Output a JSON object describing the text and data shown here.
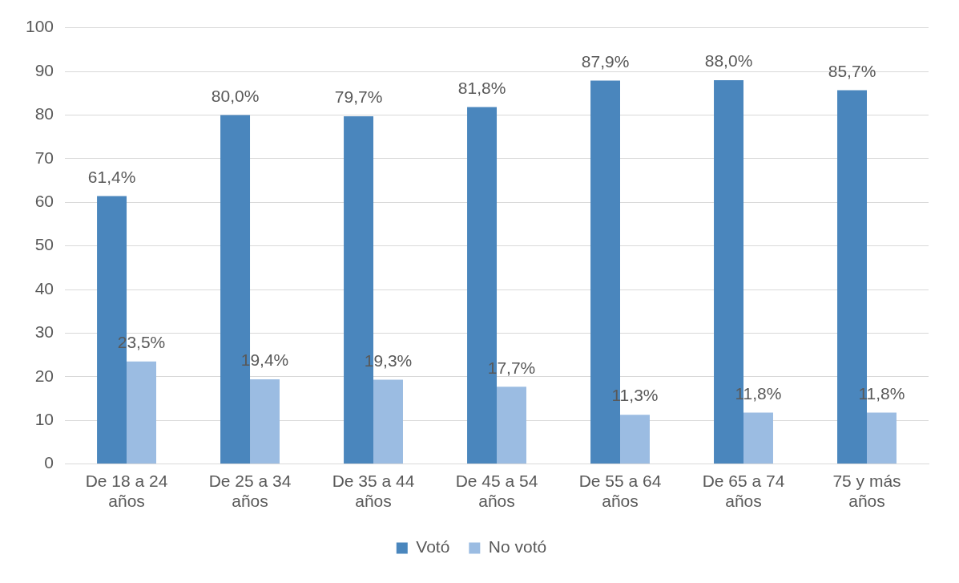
{
  "chart_data": {
    "type": "bar",
    "categories": [
      "De 18 a 24 años",
      "De 25 a 34 años",
      "De 35 a 44 años",
      "De 45 a 54 años",
      "De 55 a 64 años",
      "De 65 a 74 años",
      "75 y más años"
    ],
    "series": [
      {
        "name": "Votó",
        "color": "#4a86bd",
        "values": [
          61.4,
          80.0,
          79.7,
          81.8,
          87.9,
          88.0,
          85.7
        ],
        "value_labels": [
          "61,4%",
          "80,0%",
          "79,7%",
          "81,8%",
          "87,9%",
          "88,0%",
          "85,7%"
        ]
      },
      {
        "name": "No votó",
        "color": "#9bbce2",
        "values": [
          23.5,
          19.4,
          19.3,
          17.7,
          11.3,
          11.8,
          11.8
        ],
        "value_labels": [
          "23,5%",
          "19,4%",
          "19,3%",
          "17,7%",
          "11,3%",
          "11,8%",
          "11,8%"
        ]
      }
    ],
    "ylim": [
      0,
      100
    ],
    "yticks": [
      0,
      10,
      20,
      30,
      40,
      50,
      60,
      70,
      80,
      90,
      100
    ],
    "grid": "y",
    "legend": "bottom"
  }
}
